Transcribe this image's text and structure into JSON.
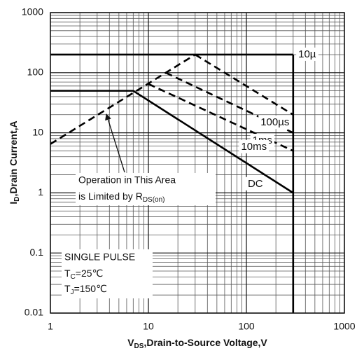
{
  "chart_data": {
    "type": "line",
    "log_x": true,
    "log_y": true,
    "grid": true,
    "xlim": [
      1,
      1000
    ],
    "ylim": [
      0.01,
      1000
    ],
    "xticks": [
      1,
      10,
      100,
      1000
    ],
    "yticks": [
      0.01,
      0.1,
      1,
      10,
      100,
      1000
    ],
    "xlabel": {
      "main": "V",
      "sub": "DS",
      "rest": ",Drain-to-Source Voltage,V"
    },
    "ylabel": {
      "main": "I",
      "sub": "D",
      "rest": ",Drain Current,A"
    },
    "series": [
      {
        "name": "10µ",
        "color": "#000000",
        "dashed": false,
        "x": [
          1,
          300
        ],
        "values": [
          200,
          200
        ]
      },
      {
        "name": "100µs",
        "color": "#000000",
        "dashed": true,
        "x": [
          30,
          300
        ],
        "values": [
          200,
          20
        ]
      },
      {
        "name": "1ms",
        "color": "#000000",
        "dashed": true,
        "x": [
          15,
          300
        ],
        "values": [
          100,
          10
        ]
      },
      {
        "name": "10ms",
        "color": "#000000",
        "dashed": true,
        "x": [
          10,
          300
        ],
        "values": [
          65,
          5
        ]
      },
      {
        "name": "DC",
        "color": "#000000",
        "dashed": false,
        "x": [
          1,
          7,
          300
        ],
        "values": [
          50,
          50,
          1
        ]
      }
    ],
    "limit_line": {
      "color": "#000000",
      "dashed": true,
      "x": [
        1,
        30
      ],
      "values": [
        6.5,
        200
      ]
    },
    "voltage_limit": {
      "color": "#000000",
      "dashed": false,
      "x": [
        300,
        300
      ],
      "values": [
        200,
        0.01
      ]
    },
    "annotation": {
      "line1": "Operation in This Area",
      "line2": "is Limited by R",
      "sub": "DS(on)"
    },
    "conditions": {
      "pulse": "SINGLE PULSE",
      "tc": {
        "main": "T",
        "sub": "C",
        "rest": "=25℃"
      },
      "tj": {
        "main": "T",
        "sub": "J",
        "rest": "=150℃"
      }
    }
  }
}
